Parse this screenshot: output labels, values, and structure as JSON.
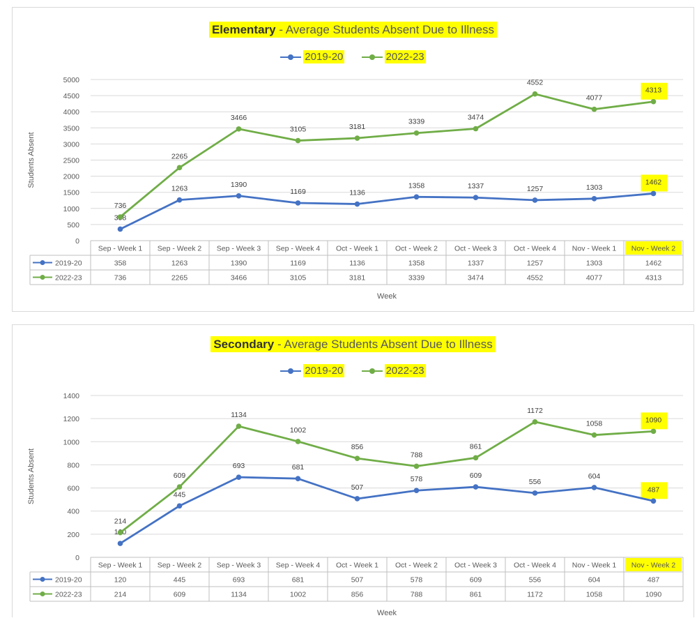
{
  "chart_data": [
    {
      "type": "line",
      "title_bold": "Elementary",
      "title_rest": " - Average Students Absent Due to Illness",
      "xlabel": "Week",
      "ylabel": "Students Absent",
      "ylim": [
        0,
        5000
      ],
      "yticks": [
        "0",
        "500",
        "1000",
        "1500",
        "2000",
        "2500",
        "3000",
        "3500",
        "4000",
        "4500",
        "5000"
      ],
      "categories": [
        "Sep - Week 1",
        "Sep - Week 2",
        "Sep - Week 3",
        "Sep - Week 4",
        "Oct - Week 1",
        "Oct - Week 2",
        "Oct - Week 3",
        "Oct - Week 4",
        "Nov - Week 1",
        "Nov - Week 2"
      ],
      "series": [
        {
          "name": "2019-20",
          "color": "#4472c4",
          "values": [
            358,
            1263,
            1390,
            1169,
            1136,
            1358,
            1337,
            1257,
            1303,
            1462
          ],
          "labels": [
            "358",
            "1263",
            "1390",
            "1169",
            "1136",
            "1358",
            "1337",
            "1257",
            "1303",
            "1462"
          ]
        },
        {
          "name": "2022-23",
          "color": "#70ad47",
          "values": [
            736,
            2265,
            3466,
            3105,
            3181,
            3339,
            3474,
            4552,
            4077,
            4313
          ],
          "labels": [
            "736",
            "2265",
            "3466",
            "3105",
            "3181",
            "3339",
            "3474",
            "4552",
            "4077",
            "4313"
          ]
        }
      ],
      "highlight_color": "#ffff00"
    },
    {
      "type": "line",
      "title_bold": "Secondary",
      "title_rest": " - Average Students Absent Due to Illness",
      "xlabel": "Week",
      "ylabel": "Students Absent",
      "ylim": [
        0,
        1400
      ],
      "yticks": [
        "0",
        "200",
        "400",
        "600",
        "800",
        "1000",
        "1200",
        "1400"
      ],
      "categories": [
        "Sep - Week 1",
        "Sep - Week 2",
        "Sep - Week 3",
        "Sep - Week 4",
        "Oct - Week 1",
        "Oct - Week 2",
        "Oct - Week 3",
        "Oct - Week 4",
        "Nov - Week 1",
        "Nov - Week 2"
      ],
      "series": [
        {
          "name": "2019-20",
          "color": "#4472c4",
          "values": [
            120,
            445,
            693,
            681,
            507,
            578,
            609,
            556,
            604,
            487
          ],
          "labels": [
            "120",
            "445",
            "693",
            "681",
            "507",
            "578",
            "609",
            "556",
            "604",
            "487"
          ]
        },
        {
          "name": "2022-23",
          "color": "#70ad47",
          "values": [
            214,
            609,
            1134,
            1002,
            856,
            788,
            861,
            1172,
            1058,
            1090
          ],
          "labels": [
            "214",
            "609",
            "1134",
            "1002",
            "856",
            "788",
            "861",
            "1172",
            "1058",
            "1090"
          ]
        }
      ],
      "highlight_color": "#ffff00"
    }
  ]
}
